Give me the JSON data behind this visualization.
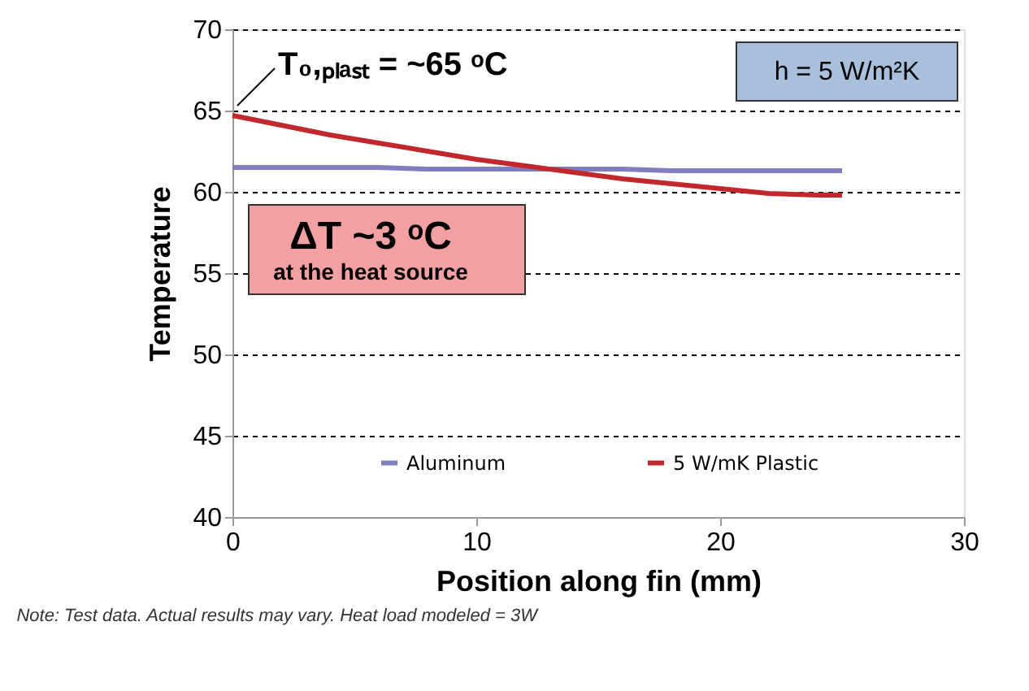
{
  "chart_data": {
    "type": "line",
    "xlabel": "Position along fin (mm)",
    "ylabel": "Temperature",
    "x": [
      0,
      2,
      4,
      6,
      8,
      10,
      12,
      14,
      16,
      18,
      20,
      22,
      24,
      25
    ],
    "series": [
      {
        "name": "Aluminum",
        "color": "#7f7fc0",
        "values": [
          61.5,
          61.5,
          61.5,
          61.5,
          61.4,
          61.4,
          61.4,
          61.4,
          61.4,
          61.3,
          61.3,
          61.3,
          61.3,
          61.3
        ]
      },
      {
        "name": "5 W/mK Plastic",
        "color": "#c0282c",
        "values": [
          64.7,
          64.1,
          63.5,
          63.0,
          62.5,
          62.0,
          61.6,
          61.2,
          60.8,
          60.5,
          60.2,
          59.9,
          59.8,
          59.8
        ]
      }
    ],
    "xlim": [
      0,
      30
    ],
    "xticks": [
      0,
      10,
      20,
      30
    ],
    "ylim": [
      40,
      70
    ],
    "yticks": [
      40,
      45,
      50,
      55,
      60,
      65,
      70
    ],
    "grid": "y",
    "legend": "bottom",
    "line_style": "solid",
    "marker": "none",
    "annotations": [
      {
        "text": "T₀,ₚₗₐₛₜ = ~65 ᵒC",
        "x": 0,
        "y": 65
      },
      "h = 5 W/m²K",
      "ΔT ~3 ᵒC",
      "at the heat source",
      "Note: Test data. Actual results may vary. Heat load modeled = 3W"
    ]
  }
}
